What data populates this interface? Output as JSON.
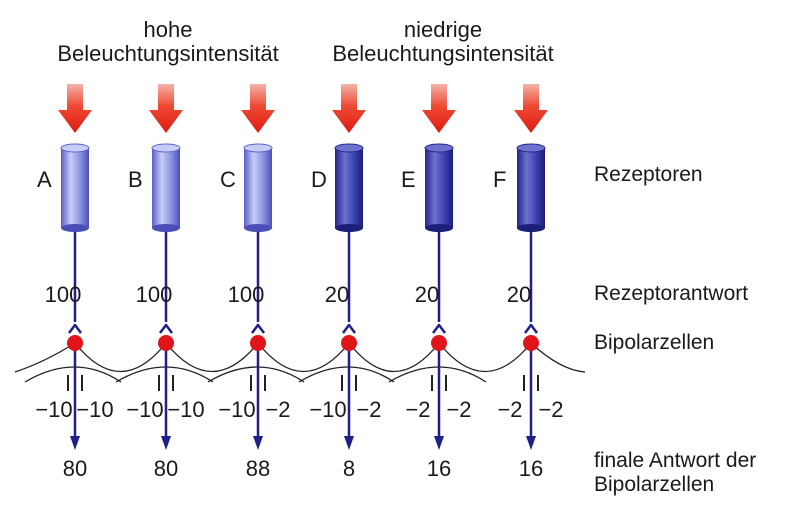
{
  "headers": {
    "high": [
      "hohe",
      "Beleuchtungsintensität"
    ],
    "low": [
      "niedrige",
      "Beleuchtungsintensität"
    ]
  },
  "receptors": [
    {
      "label": "A",
      "response": "100",
      "left": "−10",
      "right": "−10",
      "final": "80",
      "shade": "light"
    },
    {
      "label": "B",
      "response": "100",
      "left": "−10",
      "right": "−10",
      "final": "80",
      "shade": "light"
    },
    {
      "label": "C",
      "response": "100",
      "left": "−10",
      "right": "−2",
      "final": "88",
      "shade": "light"
    },
    {
      "label": "D",
      "response": "20",
      "left": "−10",
      "right": "−2",
      "final": "8",
      "shade": "dark"
    },
    {
      "label": "E",
      "response": "20",
      "left": "−2",
      "right": "−2",
      "final": "16",
      "shade": "dark"
    },
    {
      "label": "F",
      "response": "20",
      "left": "−2",
      "right": "−2",
      "final": "16",
      "shade": "dark"
    }
  ],
  "side_labels": {
    "receptors": "Rezeptoren",
    "response": "Rezeptorantwort",
    "bipolar": "Bipolarzellen",
    "final": [
      "finale Antwort der",
      "Bipolarzellen"
    ]
  },
  "colors": {
    "arrow": "#e8241c",
    "cylinder_light": "#8a8fe0",
    "cylinder_dark": "#3b3fae",
    "line": "#1f1f8c",
    "cell": "#e0151a"
  }
}
